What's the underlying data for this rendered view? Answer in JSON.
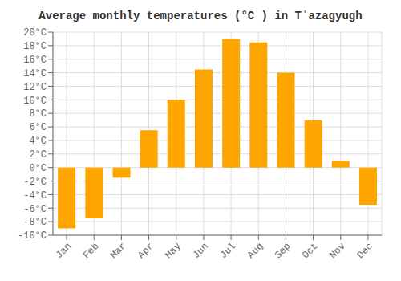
{
  "chart_data": {
    "type": "bar",
    "title": "Average monthly temperatures (°C ) in Tʿazagyugh",
    "categories": [
      "Jan",
      "Feb",
      "Mar",
      "Apr",
      "May",
      "Jun",
      "Jul",
      "Aug",
      "Sep",
      "Oct",
      "Nov",
      "Dec"
    ],
    "values": [
      -9,
      -7.5,
      -1.5,
      5.5,
      10,
      14.5,
      19,
      18.5,
      14,
      7,
      1,
      -5.5
    ],
    "color": "#FFA500",
    "ylim": [
      -10,
      20
    ],
    "yticks": [
      {
        "value": -10,
        "label": "-10°C"
      },
      {
        "value": -8,
        "label": "-8°C"
      },
      {
        "value": -6,
        "label": "-6°C"
      },
      {
        "value": -4,
        "label": "-4°C"
      },
      {
        "value": -2,
        "label": "-2°C"
      },
      {
        "value": 0,
        "label": "0°C"
      },
      {
        "value": 2,
        "label": "2°C"
      },
      {
        "value": 4,
        "label": "4°C"
      },
      {
        "value": 6,
        "label": "6°C"
      },
      {
        "value": 8,
        "label": "8°C"
      },
      {
        "value": 10,
        "label": "10°C"
      },
      {
        "value": 12,
        "label": "12°C"
      },
      {
        "value": 14,
        "label": "14°C"
      },
      {
        "value": 16,
        "label": "16°C"
      },
      {
        "value": 18,
        "label": "18°C"
      },
      {
        "value": 20,
        "label": "20°C"
      }
    ],
    "grid": true
  }
}
